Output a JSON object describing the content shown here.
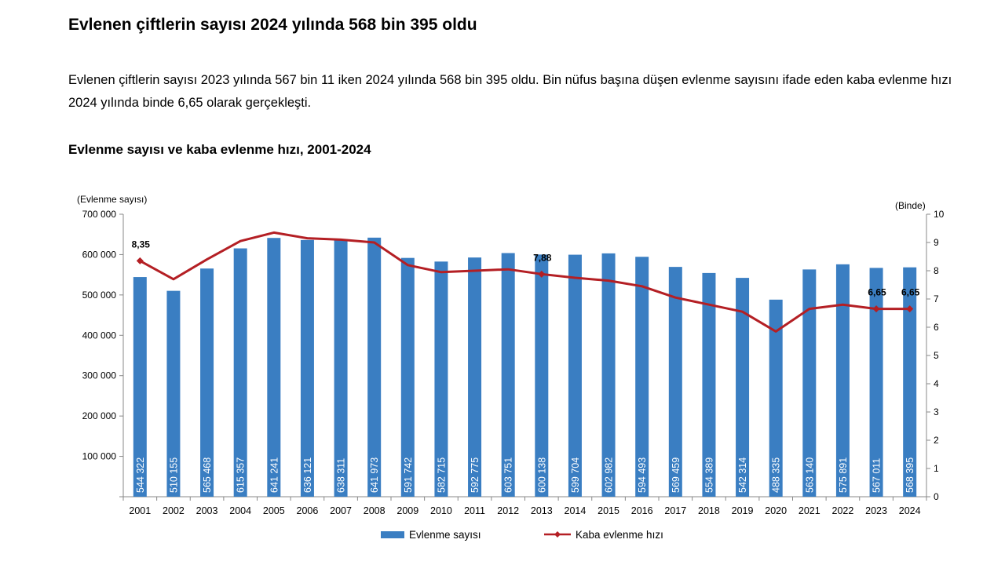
{
  "page": {
    "title": "Evlenen çiftlerin sayısı 2024 yılında 568 bin 395 oldu",
    "intro": "Evlenen çiftlerin sayısı 2023 yılında 567 bin 11 iken 2024 yılında 568 bin 395 oldu. Bin nüfus başına düşen evlenme sayısını ifade eden kaba evlenme hızı 2024 yılında binde 6,65 olarak gerçekleşti.",
    "chart_heading": "Evlenme sayısı ve kaba evlenme hızı, 2001-2024"
  },
  "chart_data": {
    "type": "bar",
    "title": "Evlenme sayısı ve kaba evlenme hızı, 2001-2024",
    "ylabel": "(Evlenme sayısı)",
    "y2label": "(Binde)",
    "ylim": [
      0,
      700000
    ],
    "y2lim": [
      0,
      10
    ],
    "yticks": [
      "",
      "100 000",
      "200 000",
      "300 000",
      "400 000",
      "500 000",
      "600 000",
      "700 000"
    ],
    "y2ticks": [
      "0",
      "1",
      "2",
      "3",
      "4",
      "5",
      "6",
      "7",
      "8",
      "9",
      "10"
    ],
    "grid": false,
    "legend_position": "bottom",
    "categories": [
      "2001",
      "2002",
      "2003",
      "2004",
      "2005",
      "2006",
      "2007",
      "2008",
      "2009",
      "2010",
      "2011",
      "2012",
      "2013",
      "2014",
      "2015",
      "2016",
      "2017",
      "2018",
      "2019",
      "2020",
      "2021",
      "2022",
      "2023",
      "2024"
    ],
    "series": [
      {
        "name": "Evlenme sayısı",
        "type": "bar",
        "axis": "left",
        "color": "#3a7ec2",
        "values": [
          544322,
          510155,
          565468,
          615357,
          641241,
          636121,
          638311,
          641973,
          591742,
          582715,
          592775,
          603751,
          600138,
          599704,
          602982,
          594493,
          569459,
          554389,
          542314,
          488335,
          563140,
          575891,
          567011,
          568395
        ],
        "labels": [
          "544 322",
          "510 155",
          "565 468",
          "615 357",
          "641 241",
          "636 121",
          "638 311",
          "641 973",
          "591 742",
          "582 715",
          "592 775",
          "603 751",
          "600 138",
          "599 704",
          "602 982",
          "594 493",
          "569 459",
          "554 389",
          "542 314",
          "488 335",
          "563 140",
          "575 891",
          "567 011",
          "568 395"
        ]
      },
      {
        "name": "Kaba evlenme hızı",
        "type": "line",
        "axis": "right",
        "color": "#b41f24",
        "values": [
          8.35,
          7.7,
          8.4,
          9.05,
          9.35,
          9.15,
          9.1,
          9.0,
          8.2,
          7.95,
          8.0,
          8.05,
          7.88,
          7.75,
          7.65,
          7.45,
          7.05,
          6.8,
          6.55,
          5.85,
          6.65,
          6.8,
          6.65,
          6.65
        ],
        "point_labels": [
          {
            "index": 0,
            "text": "8,35"
          },
          {
            "index": 12,
            "text": "7,88"
          },
          {
            "index": 22,
            "text": "6,65"
          },
          {
            "index": 23,
            "text": "6,65"
          }
        ]
      }
    ]
  }
}
